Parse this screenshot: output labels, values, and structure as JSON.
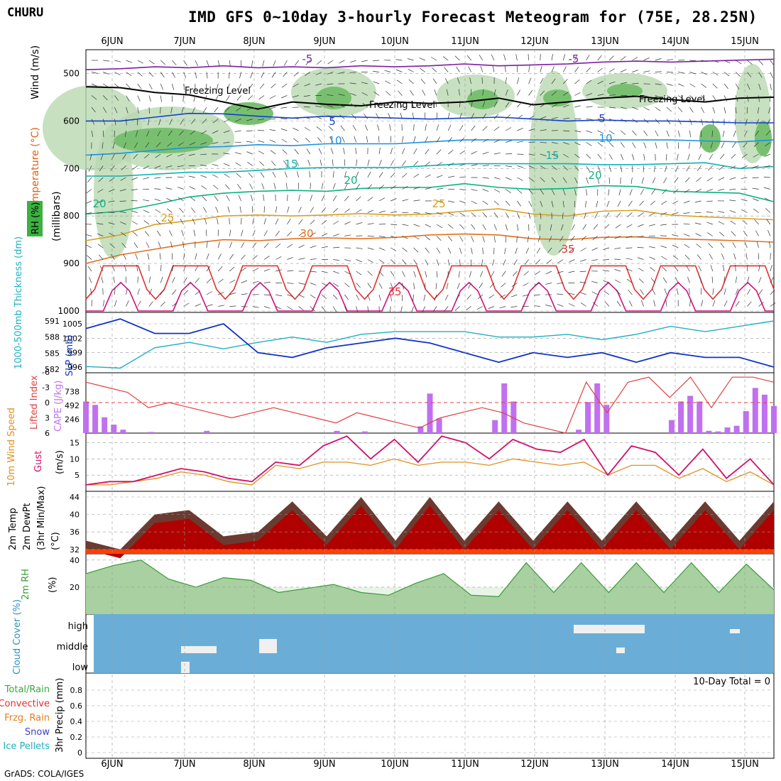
{
  "header": {
    "station": "CHURU",
    "title": "IMD GFS 0~10day 3-hourly Forecast Meteogram for (75E, 28.25N)"
  },
  "footer": {
    "credit": "GrADS: COLA/IGES"
  },
  "dates": [
    "6JUN",
    "7JUN",
    "8JUN",
    "9JUN",
    "10JUN",
    "11JUN",
    "12JUN",
    "13JUN",
    "14JUN",
    "15JUN"
  ],
  "colors": {
    "temp_neg5": "#7b1fa2",
    "temp_5": "#1040d0",
    "temp_10": "#1e90e0",
    "temp_15": "#12b0b0",
    "temp_20": "#10b080",
    "temp_25": "#d8a020",
    "temp_30": "#e07020",
    "temp_35": "#e03030",
    "temp_40": "#d0107a",
    "rh_light": "#e8f5e6",
    "rh_mid": "#b8d8b0",
    "rh_dark": "#78c070",
    "slp": "#1034c8",
    "thickness": "#20b0c0",
    "lifted_index": "#e04040",
    "cape": "#c070f0",
    "gust": "#d0106a",
    "wind": "#e09020",
    "temp_max": "#6b3a30",
    "temp": "#b00000",
    "dewpt": "#ff4000",
    "rh2m": "#3a9a3a",
    "cloud": "#6aaed8"
  },
  "chart_data": [
    {
      "type": "contour",
      "panel": "upper-air",
      "ylabel_parts": [
        "Wind (m/s)",
        "Temperature (°C)",
        "RH (%)",
        "(millibars)"
      ],
      "ylim": [
        1000,
        450
      ],
      "yticks": [
        500,
        600,
        700,
        800,
        900,
        1000
      ],
      "contour_labels": [
        "-5",
        "5",
        "10",
        "15",
        "20",
        "25",
        "30",
        "35"
      ],
      "annotations": [
        "Freezing Level"
      ],
      "isotherms": [
        {
          "label": "-5",
          "p": [
            492,
            490,
            486,
            488,
            484,
            488,
            486,
            488,
            484,
            486,
            484,
            480,
            484,
            482,
            480,
            476,
            474,
            476,
            474,
            472,
            470
          ]
        },
        {
          "label": "0",
          "p": [
            528,
            530,
            540,
            545,
            560,
            575,
            560,
            565,
            568,
            560,
            563,
            560,
            552,
            566,
            560,
            552,
            548,
            555,
            560,
            552,
            550
          ]
        },
        {
          "label": "5",
          "p": [
            600,
            600,
            592,
            584,
            585,
            590,
            594,
            590,
            592,
            594,
            596,
            594,
            592,
            596,
            600,
            598,
            600,
            600,
            602,
            604,
            604
          ]
        },
        {
          "label": "10",
          "p": [
            672,
            668,
            662,
            656,
            654,
            650,
            652,
            648,
            648,
            648,
            644,
            640,
            640,
            640,
            640,
            640,
            640,
            640,
            642,
            644,
            640
          ]
        },
        {
          "label": "15",
          "p": [
            716,
            716,
            712,
            708,
            708,
            704,
            700,
            698,
            698,
            698,
            694,
            690,
            690,
            690,
            690,
            692,
            692,
            690,
            688,
            700,
            696
          ]
        },
        {
          "label": "20",
          "p": [
            796,
            790,
            776,
            760,
            752,
            748,
            746,
            748,
            742,
            740,
            740,
            732,
            740,
            744,
            742,
            736,
            738,
            748,
            750,
            752,
            770
          ]
        },
        {
          "label": "25",
          "p": [
            852,
            840,
            818,
            810,
            800,
            798,
            800,
            798,
            795,
            798,
            796,
            790,
            785,
            796,
            800,
            790,
            788,
            798,
            802,
            805,
            808
          ]
        },
        {
          "label": "30",
          "p": [
            900,
            882,
            870,
            858,
            850,
            852,
            848,
            846,
            848,
            845,
            840,
            838,
            840,
            848,
            850,
            845,
            844,
            848,
            850,
            852,
            855
          ]
        }
      ]
    },
    {
      "type": "line",
      "panel": "pressure",
      "series": [
        {
          "name": "SLP (mb)",
          "axis": "right-inner",
          "values": [
            1004,
            1006,
            1003,
            1003,
            1005,
            999,
            998,
            1000,
            1001,
            1002,
            1001,
            999,
            997,
            999,
            998,
            999,
            997,
            999,
            998,
            998,
            996
          ]
        },
        {
          "name": "1000-500mb Thickness (dm)",
          "axis": "left",
          "values": [
            582.5,
            582.2,
            586.0,
            587.0,
            585.8,
            587.0,
            588.0,
            587.0,
            588.5,
            589.0,
            589.0,
            589.0,
            588.0,
            588.0,
            588.5,
            587.5,
            588.5,
            590.0,
            589.0,
            590.0,
            591.0
          ]
        }
      ],
      "yticks_left": [
        582,
        585,
        588,
        591
      ],
      "yticks_right": [
        996,
        999,
        1002,
        1005
      ]
    },
    {
      "type": "bar+line",
      "panel": "instability",
      "series": [
        {
          "name": "CAPE (J/kg)",
          "kind": "bar",
          "values": [
            560,
            500,
            280,
            150,
            60,
            0,
            0,
            20,
            0,
            0,
            0,
            0,
            0,
            40,
            0,
            0,
            0,
            0,
            0,
            0,
            0,
            0,
            0,
            0,
            0,
            0,
            0,
            40,
            0,
            0,
            30,
            0,
            0,
            0,
            0,
            0,
            120,
            700,
            260,
            0,
            0,
            0,
            0,
            0,
            230,
            880,
            560,
            0,
            0,
            0,
            0,
            0,
            0,
            60,
            550,
            880,
            500,
            0,
            0,
            0,
            0,
            0,
            0,
            230,
            560,
            660,
            560,
            40,
            30,
            100,
            130,
            390,
            800,
            680,
            480
          ]
        },
        {
          "name": "Lifted Index",
          "kind": "line",
          "values": [
            -4,
            -3,
            -2,
            1,
            0,
            1,
            2,
            3,
            2,
            1,
            2,
            3,
            4,
            2,
            3,
            4,
            5,
            3,
            2,
            1,
            2,
            4,
            5,
            6,
            -4,
            2,
            -4,
            -5,
            -1,
            -5,
            1,
            -5,
            -5,
            -4
          ]
        }
      ],
      "yticks_cape": [
        246,
        492,
        738
      ],
      "yticks_li": [
        -6,
        -3,
        0,
        3,
        6
      ]
    },
    {
      "type": "line",
      "panel": "surface-wind",
      "ylabel": "(m/s)",
      "series": [
        {
          "name": "Gust",
          "values": [
            2,
            3,
            3,
            5,
            7,
            6,
            4,
            3,
            9,
            8,
            14,
            17,
            10,
            16,
            9,
            17,
            15,
            10,
            16,
            13,
            12,
            16,
            5,
            14,
            12,
            5,
            13,
            4,
            10,
            2
          ]
        },
        {
          "name": "10m Wind Speed",
          "values": [
            2,
            2,
            3,
            4,
            6,
            5,
            3,
            2,
            8,
            7,
            9,
            9,
            8,
            10,
            8,
            9,
            9,
            8,
            10,
            9,
            8,
            9,
            5,
            8,
            8,
            4,
            7,
            3,
            6,
            2
          ]
        }
      ],
      "yticks": [
        5,
        10,
        15
      ]
    },
    {
      "type": "area",
      "panel": "temperature",
      "ylabel_parts": [
        "2m Temp",
        "2m DewPt",
        "(3hr Min/Max)",
        "(°C)"
      ],
      "series": [
        {
          "name": "2m Temp (max)",
          "values": [
            34,
            32,
            40,
            41,
            35,
            36,
            43,
            35,
            44,
            34,
            44,
            34,
            43,
            34,
            43,
            34,
            43,
            34,
            43,
            34,
            43
          ]
        },
        {
          "name": "2m DewPt",
          "values": [
            32,
            32,
            32,
            32,
            32,
            32,
            32,
            32,
            32,
            32,
            32,
            32,
            32,
            32,
            32,
            32,
            32,
            32,
            32,
            32,
            32
          ]
        }
      ],
      "yticks": [
        32,
        36,
        40,
        44
      ]
    },
    {
      "type": "area",
      "panel": "rh2m",
      "ylabel": "(%)",
      "series": [
        {
          "name": "2m RH",
          "values": [
            30,
            36,
            40,
            26,
            20,
            27,
            25,
            16,
            19,
            22,
            16,
            14,
            23,
            30,
            14,
            13,
            38,
            16,
            38,
            16,
            38,
            16,
            38,
            16,
            37,
            18
          ]
        }
      ],
      "yticks": [
        20,
        40
      ]
    },
    {
      "type": "bar",
      "panel": "clouds",
      "ylabel": "Cloud Cover (%)",
      "levels": [
        "high",
        "middle",
        "low"
      ]
    },
    {
      "type": "bar",
      "panel": "precip",
      "ylabel": "3hr Precip (mm)",
      "legend": [
        "Total/Rain",
        "Convective",
        "Frzg. Rain",
        "Snow",
        "Ice Pellets"
      ],
      "total_label": "10-Day Total = 0",
      "yticks": [
        "0",
        "0.2",
        "0.4",
        "0.6",
        "0.8"
      ]
    }
  ]
}
